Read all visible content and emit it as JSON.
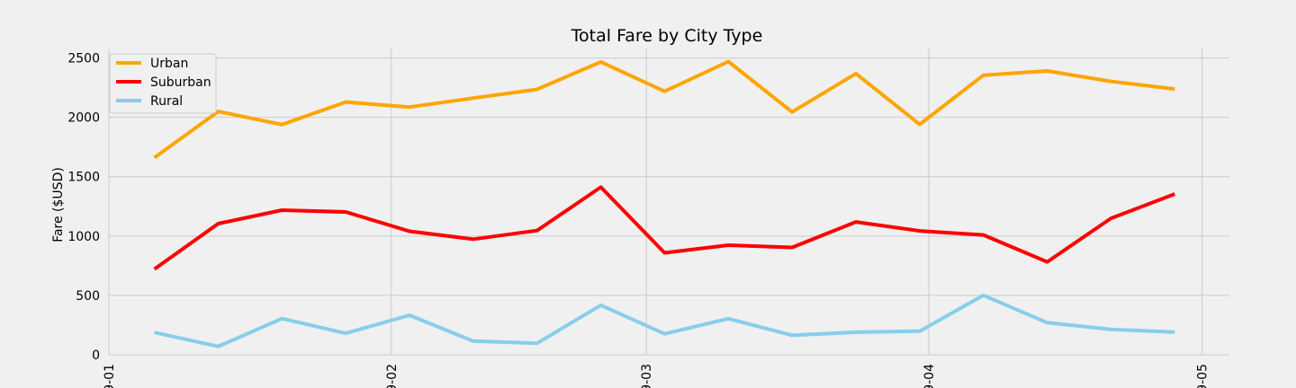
{
  "chart_data": {
    "type": "line",
    "title": "Total Fare by City Type",
    "xlabel": "",
    "ylabel": "Fare ($USD)",
    "ylim": [
      0,
      2580
    ],
    "xlim": [
      "2019-01-01",
      "2019-05-04"
    ],
    "x": [
      "2019-01-06",
      "2019-01-13",
      "2019-01-20",
      "2019-01-27",
      "2019-02-03",
      "2019-02-10",
      "2019-02-17",
      "2019-02-24",
      "2019-03-03",
      "2019-03-10",
      "2019-03-17",
      "2019-03-24",
      "2019-03-31",
      "2019-04-07",
      "2019-04-14",
      "2019-04-21",
      "2019-04-28"
    ],
    "x_tick_labels": [
      "9-01",
      "9-02",
      "9-03",
      "9-04",
      "9-05"
    ],
    "x_tick_dates": [
      "2019-01-01",
      "2019-02-01",
      "2019-03-01",
      "2019-04-01",
      "2019-05-01"
    ],
    "y_ticks": [
      0,
      500,
      1000,
      1500,
      2000,
      2500
    ],
    "grid": true,
    "legend_position": "top-left",
    "series": [
      {
        "name": "Urban",
        "color": "#ffa500",
        "values": [
          1661,
          2050,
          1939,
          2129,
          2087,
          2162,
          2236,
          2467,
          2219,
          2470,
          2045,
          2369,
          1941,
          2355,
          2391,
          2303,
          2239
        ]
      },
      {
        "name": "Suburban",
        "color": "#ff0000",
        "values": [
          722,
          1105,
          1218,
          1203,
          1040,
          974,
          1046,
          1412,
          859,
          923,
          904,
          1119,
          1043,
          1009,
          782,
          1149,
          1354
        ]
      },
      {
        "name": "Rural",
        "color": "#87ceeb",
        "values": [
          188,
          70,
          305,
          181,
          333,
          115,
          97,
          418,
          176,
          304,
          164,
          190,
          199,
          501,
          270,
          214,
          191
        ]
      }
    ]
  }
}
